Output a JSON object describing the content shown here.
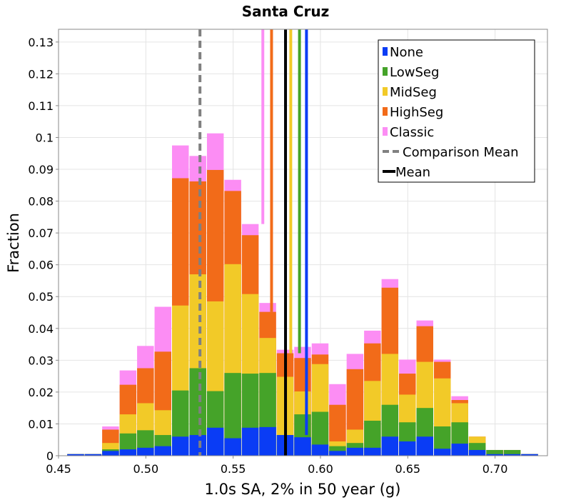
{
  "chart_data": {
    "type": "bar",
    "stacked": true,
    "title": "Santa Cruz",
    "xlabel": "1.0s SA, 2% in 50 year (g)",
    "ylabel": "Fraction",
    "xlim": [
      0.45,
      0.73
    ],
    "ylim": [
      0,
      0.134
    ],
    "bin_width": 0.01,
    "grid": true,
    "legend_position": "top-right",
    "x_ticks": [
      0.45,
      0.5,
      0.55,
      0.6,
      0.65,
      0.7
    ],
    "x_tick_labels": [
      "0.45",
      "0.50",
      "0.55",
      "0.60",
      "0.65",
      "0.70"
    ],
    "y_ticks": [
      0,
      0.01,
      0.02,
      0.03,
      0.04,
      0.05,
      0.06,
      0.07,
      0.08,
      0.09,
      0.1,
      0.11,
      0.12,
      0.13
    ],
    "y_tick_labels": [
      "0",
      "0.01",
      "0.02",
      "0.03",
      "0.04",
      "0.05",
      "0.06",
      "0.07",
      "0.08",
      "0.09",
      "0.1",
      "0.11",
      "0.12",
      "0.13"
    ],
    "bins": [
      0.46,
      0.47,
      0.48,
      0.49,
      0.5,
      0.51,
      0.52,
      0.53,
      0.54,
      0.55,
      0.56,
      0.57,
      0.58,
      0.59,
      0.6,
      0.61,
      0.62,
      0.63,
      0.64,
      0.65,
      0.66,
      0.67,
      0.68,
      0.69,
      0.7,
      0.71,
      0.72
    ],
    "series": [
      {
        "name": "None",
        "color": "#0a3cf5",
        "cumulative": [
          0.0005,
          0.0005,
          0.0015,
          0.002,
          0.0025,
          0.003,
          0.006,
          0.0065,
          0.0088,
          0.0055,
          0.0088,
          0.009,
          0.0065,
          0.0058,
          0.0035,
          0.0015,
          0.0025,
          0.0025,
          0.006,
          0.0045,
          0.006,
          0.0022,
          0.0038,
          0.0018,
          0.0005,
          0.0005,
          0.0005
        ]
      },
      {
        "name": "LowSeg",
        "color": "#45a329",
        "cumulative": [
          0.0005,
          0.0005,
          0.002,
          0.007,
          0.008,
          0.0065,
          0.0205,
          0.0275,
          0.0203,
          0.026,
          0.0258,
          0.026,
          0.0065,
          0.013,
          0.0138,
          0.003,
          0.004,
          0.011,
          0.016,
          0.0105,
          0.015,
          0.0092,
          0.0105,
          0.004,
          0.0018,
          0.0018,
          0.0005
        ]
      },
      {
        "name": "MidSeg",
        "color": "#f2ca28",
        "cumulative": [
          0.0005,
          0.0005,
          0.004,
          0.013,
          0.0165,
          0.0143,
          0.0472,
          0.057,
          0.0485,
          0.0602,
          0.0508,
          0.037,
          0.0248,
          0.0202,
          0.0288,
          0.0045,
          0.0082,
          0.0235,
          0.032,
          0.0192,
          0.0295,
          0.0243,
          0.0165,
          0.006,
          0.0018,
          0.0018,
          0.0005
        ]
      },
      {
        "name": "HighSeg",
        "color": "#f26b19",
        "cumulative": [
          0.0005,
          0.0005,
          0.0082,
          0.0223,
          0.0275,
          0.0327,
          0.0872,
          0.0862,
          0.0898,
          0.0832,
          0.0693,
          0.0452,
          0.0322,
          0.0307,
          0.0318,
          0.016,
          0.0272,
          0.0353,
          0.0528,
          0.0258,
          0.0407,
          0.0295,
          0.0175,
          0.006,
          0.0018,
          0.0018,
          0.0005
        ]
      },
      {
        "name": "Classic",
        "color": "#fc8df4",
        "cumulative": [
          0.0005,
          0.0005,
          0.0092,
          0.0268,
          0.0345,
          0.0468,
          0.0975,
          0.0942,
          0.1013,
          0.0867,
          0.0728,
          0.048,
          0.0333,
          0.0342,
          0.0353,
          0.0225,
          0.032,
          0.0393,
          0.0555,
          0.0302,
          0.0425,
          0.0302,
          0.0187,
          0.006,
          0.0018,
          0.0018,
          0.0005
        ]
      }
    ],
    "mean_lines": [
      {
        "name": "None",
        "x": 0.592,
        "color": "#0a3cf5"
      },
      {
        "name": "LowSeg",
        "x": 0.588,
        "color": "#45a329"
      },
      {
        "name": "MidSeg",
        "x": 0.583,
        "color": "#f2ca28"
      },
      {
        "name": "HighSeg",
        "x": 0.572,
        "color": "#f26b19"
      },
      {
        "name": "Classic",
        "x": 0.567,
        "color": "#fc8df4"
      }
    ],
    "comparison_mean": {
      "name": "Comparison Mean",
      "x": 0.531,
      "color": "#808080"
    },
    "overall_mean": {
      "name": "Mean",
      "x": 0.58,
      "color": "#000000"
    },
    "legend": [
      "None",
      "LowSeg",
      "MidSeg",
      "HighSeg",
      "Classic",
      "Comparison Mean",
      "Mean"
    ]
  }
}
